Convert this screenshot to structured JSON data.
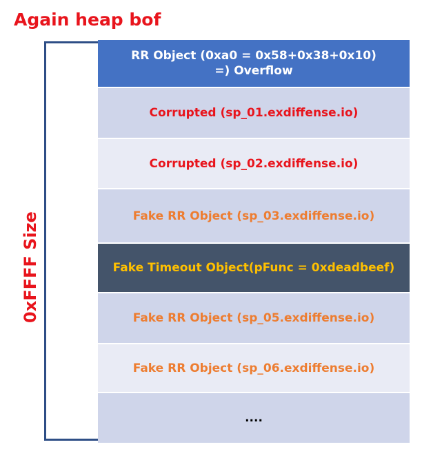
{
  "title": "Again heap bof",
  "size_label": "0xFFFF Size",
  "rows": [
    {
      "line1": "RR Object (0xa0 = 0x58+0x38+0x10)",
      "line2": "=) Overflow"
    },
    {
      "text": "Corrupted (sp_01.exdiffense.io)"
    },
    {
      "text": "Corrupted (sp_02.exdiffense.io)"
    },
    {
      "text": "Fake RR Object (sp_03.exdiffense.io)"
    },
    {
      "text": "Fake Timeout Object(pFunc = 0xdeadbeef)"
    },
    {
      "text": "Fake RR Object (sp_05.exdiffense.io)"
    },
    {
      "text": "Fake RR Object (sp_06.exdiffense.io)"
    },
    {
      "text": "...."
    }
  ],
  "colors": {
    "title_red": "#e8141c",
    "bracket_blue": "#2e4e86",
    "header_blue": "#4472c4",
    "row_light": "#cfd5ea",
    "row_lighter": "#e9ebf5",
    "row_dark": "#44546a",
    "orange": "#ed7d31",
    "yellow": "#ffc000"
  }
}
